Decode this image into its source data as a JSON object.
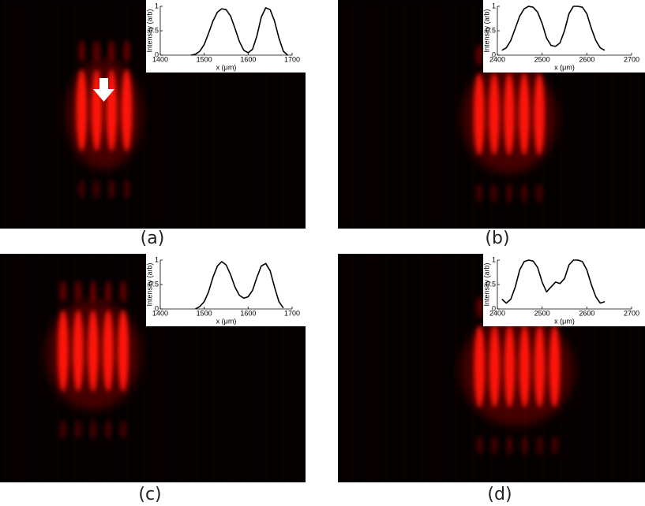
{
  "chart_data": [
    {
      "type": "line",
      "label": "(a)",
      "xlabel": "x (μm)",
      "ylabel": "Intensity (arb)",
      "color": "#000000",
      "x": [
        1470,
        1480,
        1490,
        1500,
        1510,
        1520,
        1530,
        1540,
        1550,
        1560,
        1570,
        1580,
        1590,
        1600,
        1610,
        1620,
        1630,
        1640,
        1650,
        1660,
        1670,
        1680,
        1690
      ],
      "values": [
        0.0,
        0.02,
        0.08,
        0.22,
        0.45,
        0.7,
        0.88,
        0.95,
        0.93,
        0.8,
        0.55,
        0.28,
        0.1,
        0.05,
        0.12,
        0.4,
        0.78,
        0.97,
        0.93,
        0.7,
        0.35,
        0.08,
        0.0
      ],
      "xlim": [
        1400,
        1700
      ],
      "xticks": [
        1400,
        1500,
        1600,
        1700
      ],
      "ylim": [
        0,
        1
      ],
      "yticks": [
        0,
        0.5,
        1
      ]
    },
    {
      "type": "line",
      "label": "(b)",
      "xlabel": "x (μm)",
      "ylabel": "Intensity (arb)",
      "color": "#000000",
      "x": [
        2410,
        2420,
        2430,
        2440,
        2450,
        2460,
        2470,
        2480,
        2490,
        2500,
        2510,
        2520,
        2530,
        2540,
        2550,
        2560,
        2570,
        2580,
        2590,
        2600,
        2610,
        2620,
        2630,
        2640
      ],
      "values": [
        0.1,
        0.15,
        0.3,
        0.55,
        0.8,
        0.95,
        1.0,
        0.98,
        0.88,
        0.65,
        0.35,
        0.2,
        0.18,
        0.25,
        0.5,
        0.85,
        1.0,
        1.0,
        0.98,
        0.85,
        0.55,
        0.3,
        0.15,
        0.1
      ],
      "xlim": [
        2400,
        2700
      ],
      "xticks": [
        2400,
        2500,
        2600,
        2700
      ],
      "ylim": [
        0,
        1
      ],
      "yticks": [
        0,
        0.5,
        1
      ]
    },
    {
      "type": "line",
      "label": "(c)",
      "xlabel": "x (μm)",
      "ylabel": "Intensity (arb)",
      "color": "#000000",
      "x": [
        1480,
        1490,
        1500,
        1510,
        1520,
        1530,
        1540,
        1550,
        1560,
        1570,
        1580,
        1590,
        1600,
        1610,
        1620,
        1630,
        1640,
        1650,
        1660,
        1670,
        1680
      ],
      "values": [
        0.0,
        0.05,
        0.15,
        0.35,
        0.65,
        0.88,
        0.97,
        0.9,
        0.7,
        0.45,
        0.28,
        0.22,
        0.25,
        0.38,
        0.65,
        0.88,
        0.93,
        0.78,
        0.45,
        0.15,
        0.02
      ],
      "xlim": [
        1400,
        1700
      ],
      "xticks": [
        1400,
        1500,
        1600,
        1700
      ],
      "ylim": [
        0,
        1
      ],
      "yticks": [
        0,
        0.5,
        1
      ]
    },
    {
      "type": "line",
      "label": "(d)",
      "xlabel": "x (μm)",
      "ylabel": "Intensity (arb)",
      "color": "#000000",
      "x": [
        2410,
        2420,
        2430,
        2440,
        2450,
        2460,
        2470,
        2480,
        2490,
        2500,
        2510,
        2520,
        2530,
        2540,
        2550,
        2560,
        2570,
        2580,
        2590,
        2600,
        2610,
        2620,
        2630,
        2640
      ],
      "values": [
        0.2,
        0.12,
        0.2,
        0.45,
        0.8,
        0.97,
        1.0,
        0.98,
        0.85,
        0.55,
        0.35,
        0.45,
        0.55,
        0.52,
        0.62,
        0.9,
        1.0,
        1.0,
        0.97,
        0.8,
        0.5,
        0.25,
        0.12,
        0.15
      ],
      "xlim": [
        2400,
        2700
      ],
      "xticks": [
        2400,
        2500,
        2600,
        2700
      ],
      "ylim": [
        0,
        1
      ],
      "yticks": [
        0,
        0.5,
        1
      ]
    }
  ]
}
